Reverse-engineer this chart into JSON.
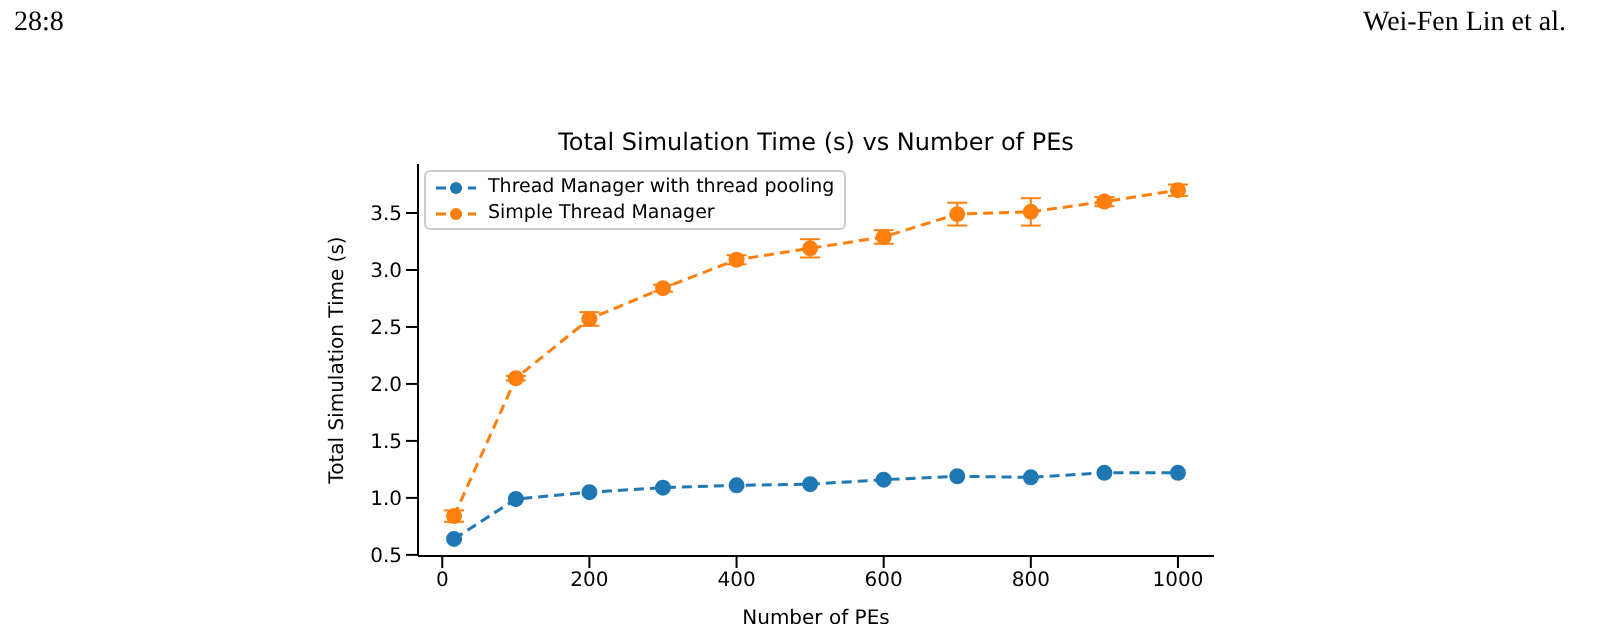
{
  "chart_data": {
    "type": "line",
    "title": "Total Simulation Time (s) vs Number of PEs",
    "xlabel": "Number of PEs",
    "ylabel": "Total Simulation Time (s)",
    "annotations": [
      "28:8",
      "Wei-Fen Lin et al."
    ],
    "x": [
      16,
      100,
      200,
      300,
      400,
      500,
      600,
      700,
      800,
      900,
      1000
    ],
    "series": [
      {
        "name": "Thread Manager with thread pooling",
        "color": "#1f77b4",
        "values": [
          0.64,
          0.99,
          1.05,
          1.09,
          1.11,
          1.12,
          1.16,
          1.19,
          1.18,
          1.22,
          1.22
        ]
      },
      {
        "name": "Simple Thread Manager",
        "color": "#ff7f0e",
        "values": [
          0.84,
          2.05,
          2.57,
          2.84,
          3.09,
          3.19,
          3.29,
          3.49,
          3.51,
          3.6,
          3.7
        ],
        "errors": [
          0.05,
          0.02,
          0.06,
          0.03,
          0.04,
          0.08,
          0.06,
          0.1,
          0.12,
          0.04,
          0.05
        ]
      }
    ],
    "xlim": [
      -33,
      1049
    ],
    "xticks": [
      0,
      200,
      400,
      600,
      800,
      1000
    ],
    "ylim": [
      0.49,
      3.93
    ],
    "yticks": [
      0.5,
      {
        "value": 1,
        "label": "1.0"
      },
      1.5,
      {
        "value": 2,
        "label": "2.0"
      },
      2.5,
      {
        "value": 3,
        "label": "3.0"
      },
      3.5
    ],
    "grid": false,
    "legend": "top left",
    "marker": "circle",
    "line_style": "dashed"
  }
}
